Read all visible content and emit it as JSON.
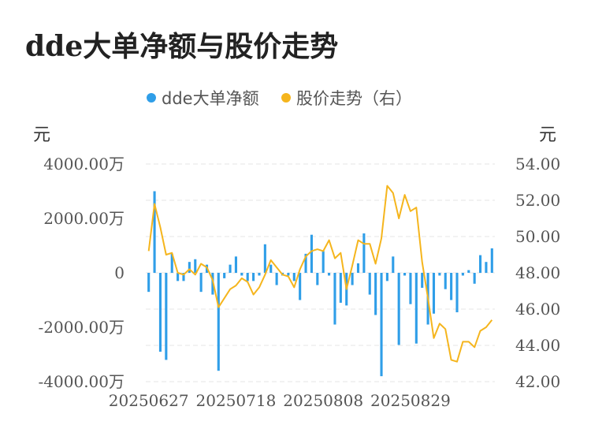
{
  "title": "dde大单净额与股价走势",
  "chart_data": {
    "type": "bar+line",
    "legend": [
      "dde大单净额",
      "股价走势（右）"
    ],
    "colors": {
      "bar": "#2f9ee8",
      "line": "#f5b51d",
      "grid": "#e4e4e4"
    },
    "left_unit": "元",
    "right_unit": "元",
    "left_ticks": [
      "4000.00万",
      "2000.00万",
      "0",
      "-2000.00万",
      "-4000.00万"
    ],
    "right_ticks": [
      "54.00",
      "52.00",
      "50.00",
      "48.00",
      "46.00",
      "44.00",
      "42.00"
    ],
    "left_ylim": [
      -4000,
      4000
    ],
    "right_ylim": [
      42,
      54
    ],
    "x_tick_labels": [
      "20250627",
      "20250718",
      "20250808",
      "20250829"
    ],
    "x_tick_positions": [
      0,
      15,
      30,
      45
    ],
    "bar_values_wan": [
      -700,
      3000,
      -2900,
      -3200,
      700,
      -300,
      -300,
      400,
      500,
      -700,
      300,
      -800,
      -3600,
      -200,
      300,
      600,
      -100,
      -300,
      -300,
      -100,
      1050,
      300,
      -450,
      -100,
      -100,
      -300,
      -1000,
      700,
      1400,
      -450,
      800,
      -100,
      -1900,
      -1100,
      -1200,
      -450,
      350,
      1450,
      -800,
      -1550,
      -3800,
      -300,
      600,
      -2650,
      -100,
      -1150,
      -2600,
      -550,
      -1900,
      -1500,
      -100,
      -600,
      -1000,
      -1450,
      -100,
      100,
      -400,
      650,
      400,
      900
    ],
    "price": [
      49.2,
      51.8,
      50.5,
      49.0,
      49.1,
      48.0,
      47.9,
      48.2,
      47.9,
      48.5,
      48.3,
      47.6,
      46.1,
      46.6,
      47.1,
      47.3,
      47.7,
      47.5,
      46.8,
      47.2,
      47.9,
      48.7,
      48.3,
      47.9,
      47.8,
      47.2,
      48.2,
      48.9,
      49.2,
      49.3,
      49.2,
      49.8,
      48.8,
      49.1,
      47.1,
      48.4,
      49.8,
      49.6,
      49.6,
      48.5,
      49.9,
      52.8,
      52.4,
      51.0,
      52.3,
      51.4,
      51.6,
      48.6,
      46.6,
      44.4,
      45.2,
      44.9,
      43.2,
      43.1,
      44.2,
      44.2,
      43.9,
      44.8,
      45.0,
      45.4
    ]
  }
}
